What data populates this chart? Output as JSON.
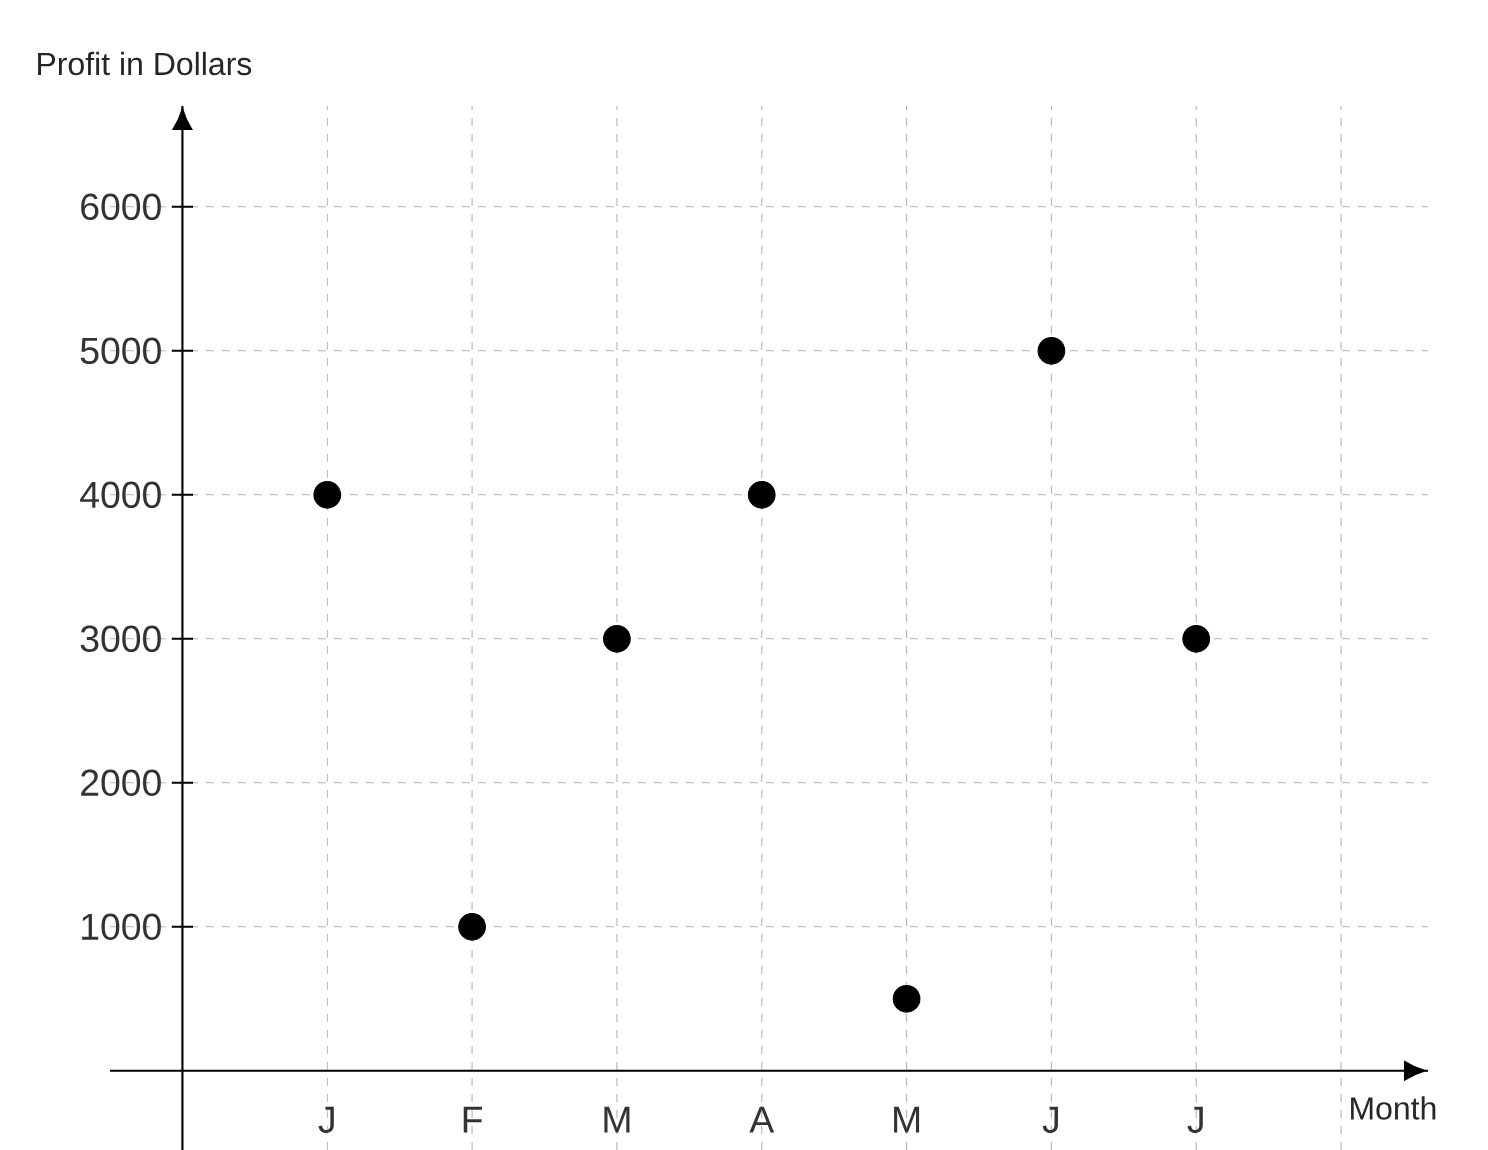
{
  "chart_data": {
    "type": "scatter",
    "xlabel": "Month",
    "ylabel": "Profit in Dollars",
    "categories": [
      "J",
      "F",
      "M",
      "A",
      "M",
      "J",
      "J",
      null
    ],
    "values": [
      4000,
      1000,
      3000,
      4000,
      500,
      5000,
      3000,
      null
    ],
    "color": "#000000",
    "marker": "circle",
    "ylim": [
      -550,
      6700
    ],
    "yticks": [
      1000,
      2000,
      3000,
      4000,
      5000,
      6000
    ],
    "grid": true
  }
}
